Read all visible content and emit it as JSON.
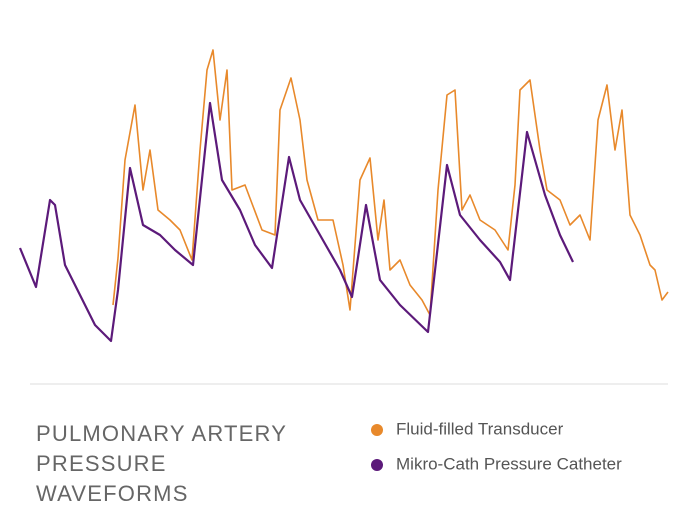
{
  "chart_data": {
    "type": "line",
    "title": "PULMONARY ARTERY PRESSURE WAVEFORMS",
    "xlim": [
      20,
      668
    ],
    "ylim": [
      0,
      340
    ],
    "series": [
      {
        "name": "Fluid-filled Transducer",
        "color": "#e8892b",
        "x": [
          113,
          118,
          125,
          135,
          143,
          150,
          158,
          170,
          180,
          192,
          200,
          207,
          213,
          220,
          227,
          232,
          245,
          262,
          275,
          280,
          291,
          300,
          307,
          318,
          333,
          343,
          350,
          360,
          370,
          378,
          384,
          390,
          400,
          410,
          422,
          430,
          438,
          447,
          455,
          462,
          470,
          480,
          495,
          508,
          515,
          520,
          530,
          540,
          547,
          560,
          570,
          580,
          590,
          598,
          607,
          615,
          622,
          630,
          640,
          650,
          655,
          662,
          668
        ],
        "values": [
          65,
          112,
          210,
          265,
          180,
          220,
          160,
          150,
          140,
          110,
          220,
          300,
          320,
          250,
          300,
          180,
          185,
          140,
          135,
          260,
          292,
          250,
          190,
          150,
          150,
          105,
          60,
          190,
          212,
          130,
          170,
          100,
          110,
          85,
          70,
          55,
          180,
          275,
          280,
          160,
          175,
          150,
          140,
          120,
          185,
          280,
          290,
          220,
          180,
          170,
          145,
          155,
          130,
          250,
          285,
          220,
          260,
          155,
          135,
          105,
          100,
          70,
          78
        ]
      },
      {
        "name": "Mikro-Cath Pressure Catheter",
        "color": "#5c1a7a",
        "x": [
          20,
          36,
          50,
          55,
          65,
          80,
          95,
          111,
          118,
          130,
          143,
          160,
          175,
          193,
          210,
          222,
          240,
          255,
          272,
          289,
          300,
          320,
          340,
          352,
          366,
          380,
          400,
          428,
          447,
          460,
          480,
          500,
          510,
          527,
          545,
          560,
          573
        ],
        "values": [
          122,
          83,
          170,
          165,
          105,
          75,
          45,
          29,
          80,
          202,
          145,
          135,
          120,
          105,
          267,
          190,
          160,
          125,
          102,
          213,
          170,
          135,
          100,
          73,
          165,
          90,
          65,
          38,
          205,
          155,
          130,
          108,
          90,
          238,
          175,
          135,
          108
        ]
      }
    ]
  }
}
